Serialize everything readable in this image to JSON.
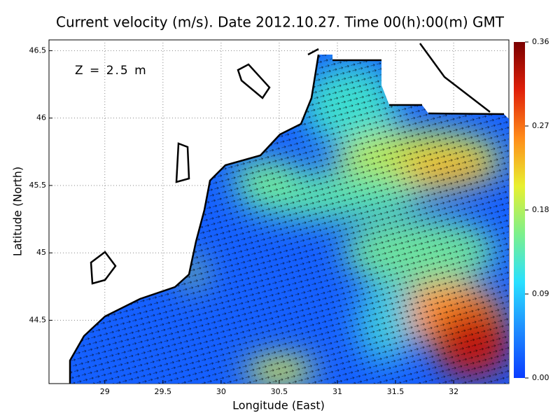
{
  "chart_data": {
    "type": "map",
    "title": "Current velocity (m/s). Date 2012.10.27. Time 00(h):00(m) GMT",
    "annotation": "Z = 2.5 m",
    "x_label": "Longitude (East)",
    "y_label": "Latitude (North)",
    "xlim": [
      28.52,
      32.475
    ],
    "xticks": [
      29,
      29.5,
      30,
      30.5,
      31,
      31.5,
      32
    ],
    "ylim": [
      44.03,
      46.58
    ],
    "yticks": [
      46.5,
      46,
      45.5,
      45,
      44.5
    ],
    "grid": true,
    "colorbar": {
      "lim": [
        0,
        0.36
      ],
      "ticks": [
        0.36,
        0.27,
        0.18,
        0.09,
        {
          "value": 0,
          "label": "0.00"
        }
      ],
      "colors": [
        "#0a3cff",
        "#1e8cff",
        "#28e0ff",
        "#7cf08c",
        "#e8f030",
        "#ff8c1a",
        "#e0200a",
        "#7a0000"
      ]
    }
  }
}
